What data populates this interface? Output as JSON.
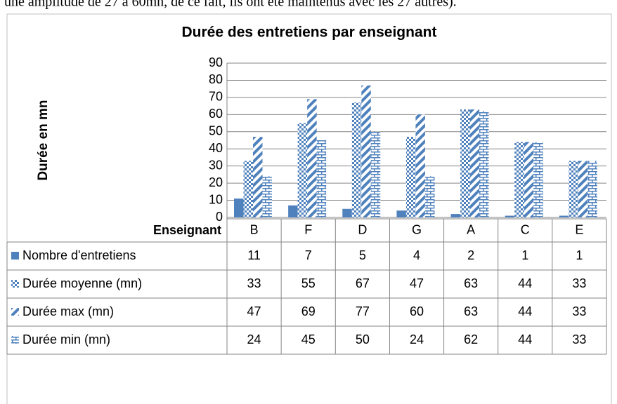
{
  "caption": "une amplitude de 27 à 60mn, de ce fait, ils ont été maintenus avec les 27 autres).",
  "chart_data": {
    "type": "bar",
    "title": "Durée des entretiens par enseignant",
    "y_label": "Durée en mn",
    "table_header": "Enseignant",
    "categories": [
      "B",
      "F",
      "D",
      "G",
      "A",
      "C",
      "E"
    ],
    "series": [
      {
        "name": "Nombre d'entretiens",
        "color": "#4f81bd",
        "pattern": "solid",
        "values": [
          11,
          7,
          5,
          4,
          2,
          1,
          1
        ]
      },
      {
        "name": "Durée moyenne (mn)",
        "color": "#4f81bd",
        "pattern": "checker",
        "values": [
          33,
          55,
          67,
          47,
          63,
          44,
          33
        ]
      },
      {
        "name": "Durée max (mn)",
        "color": "#4f81bd",
        "pattern": "diagonal",
        "values": [
          47,
          69,
          77,
          60,
          63,
          44,
          33
        ]
      },
      {
        "name": "Durée min (mn)",
        "color": "#4f81bd",
        "pattern": "brick",
        "values": [
          24,
          45,
          50,
          24,
          62,
          44,
          33
        ]
      }
    ],
    "ylim": [
      0,
      90
    ],
    "yticks": [
      0,
      10,
      20,
      30,
      40,
      50,
      60,
      70,
      80,
      90
    ],
    "grid": true
  }
}
